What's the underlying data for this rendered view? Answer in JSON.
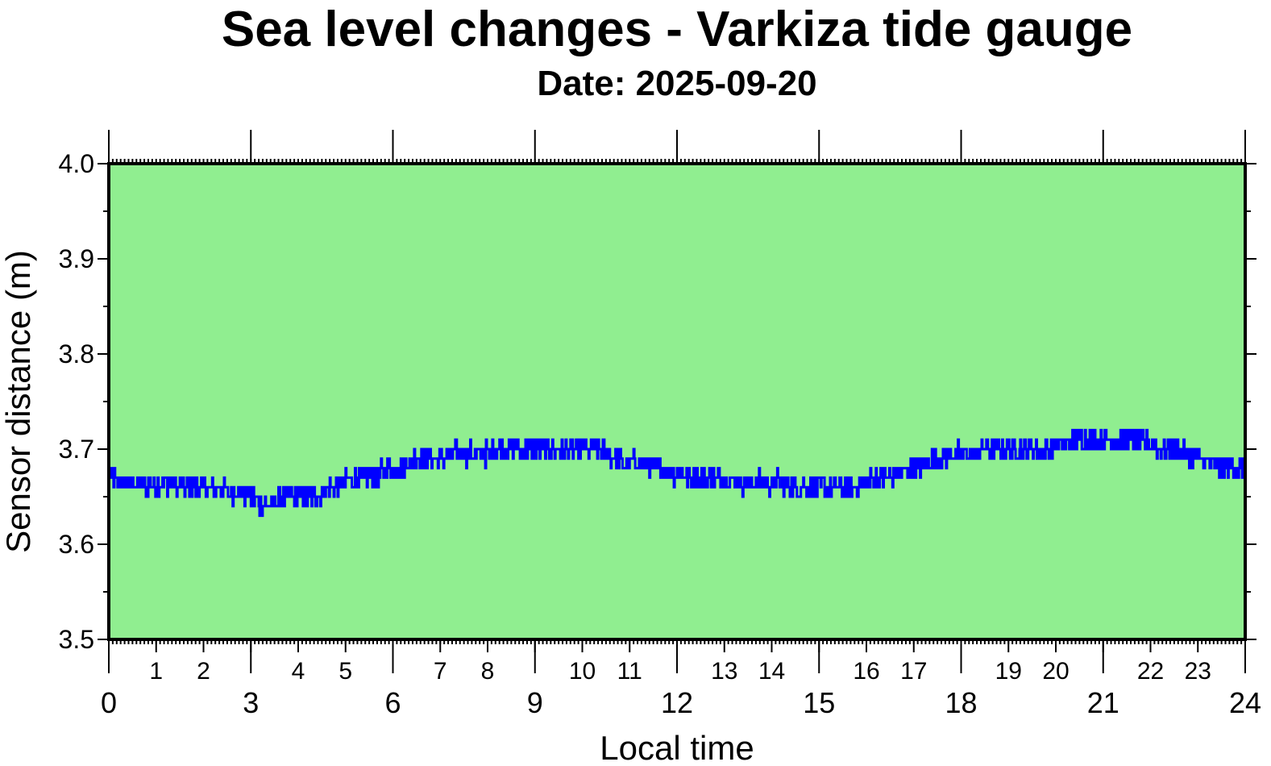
{
  "chart_data": {
    "type": "line",
    "title": "Sea level changes - Varkiza tide gauge",
    "subtitle": "Date: 2025-09-20",
    "xlabel": "Local time",
    "ylabel": "Sensor distance (m)",
    "xlim": [
      0,
      24
    ],
    "ylim": [
      3.5,
      4.0
    ],
    "yticks": [
      "3.5",
      "3.6",
      "3.7",
      "3.8",
      "3.9",
      "4.0"
    ],
    "xticks_major": [
      "0",
      "3",
      "6",
      "9",
      "12",
      "15",
      "18",
      "21",
      "24"
    ],
    "xticks_minor": [
      "1",
      "2",
      "4",
      "5",
      "7",
      "8",
      "10",
      "11",
      "13",
      "14",
      "16",
      "17",
      "19",
      "20",
      "22",
      "23"
    ],
    "grid": false,
    "background_color": "#90ee90",
    "line_color": "#0000ff",
    "series": [
      {
        "x": [
          0,
          0.25,
          0.5,
          0.75,
          1,
          1.25,
          1.5,
          1.75,
          2,
          2.25,
          2.5,
          2.75,
          3,
          3.25,
          3.5,
          3.75,
          4,
          4.25,
          4.5,
          4.75,
          5,
          5.25,
          5.5,
          5.75,
          6,
          6.25,
          6.5,
          6.75,
          7,
          7.25,
          7.5,
          7.75,
          8,
          8.25,
          8.5,
          8.75,
          9,
          9.25,
          9.5,
          9.75,
          10,
          10.25,
          10.5,
          10.75,
          11,
          11.25,
          11.5,
          11.75,
          12,
          12.25,
          12.5,
          12.75,
          13,
          13.25,
          13.5,
          13.75,
          14,
          14.25,
          14.5,
          14.75,
          15,
          15.25,
          15.5,
          15.75,
          16,
          16.25,
          16.5,
          16.75,
          17,
          17.25,
          17.5,
          17.75,
          18,
          18.25,
          18.5,
          18.75,
          19,
          19.25,
          19.5,
          19.75,
          20,
          20.25,
          20.5,
          20.75,
          21,
          21.25,
          21.5,
          21.75,
          22,
          22.25,
          22.5,
          22.75,
          23,
          23.25,
          23.5,
          23.75,
          24
        ],
        "y": [
          3.67,
          3.665,
          3.665,
          3.66,
          3.665,
          3.665,
          3.66,
          3.66,
          3.66,
          3.66,
          3.655,
          3.655,
          3.65,
          3.64,
          3.645,
          3.65,
          3.65,
          3.65,
          3.655,
          3.66,
          3.665,
          3.67,
          3.67,
          3.675,
          3.68,
          3.685,
          3.69,
          3.69,
          3.69,
          3.695,
          3.695,
          3.695,
          3.695,
          3.7,
          3.7,
          3.7,
          3.7,
          3.7,
          3.7,
          3.7,
          3.7,
          3.7,
          3.695,
          3.69,
          3.685,
          3.685,
          3.68,
          3.675,
          3.675,
          3.67,
          3.67,
          3.67,
          3.67,
          3.665,
          3.665,
          3.665,
          3.665,
          3.665,
          3.66,
          3.66,
          3.66,
          3.66,
          3.66,
          3.66,
          3.665,
          3.67,
          3.67,
          3.675,
          3.68,
          3.685,
          3.69,
          3.695,
          3.695,
          3.695,
          3.7,
          3.7,
          3.7,
          3.7,
          3.7,
          3.7,
          3.705,
          3.705,
          3.71,
          3.71,
          3.71,
          3.71,
          3.71,
          3.71,
          3.705,
          3.7,
          3.7,
          3.695,
          3.69,
          3.685,
          3.68,
          3.68,
          3.68
        ]
      }
    ]
  }
}
